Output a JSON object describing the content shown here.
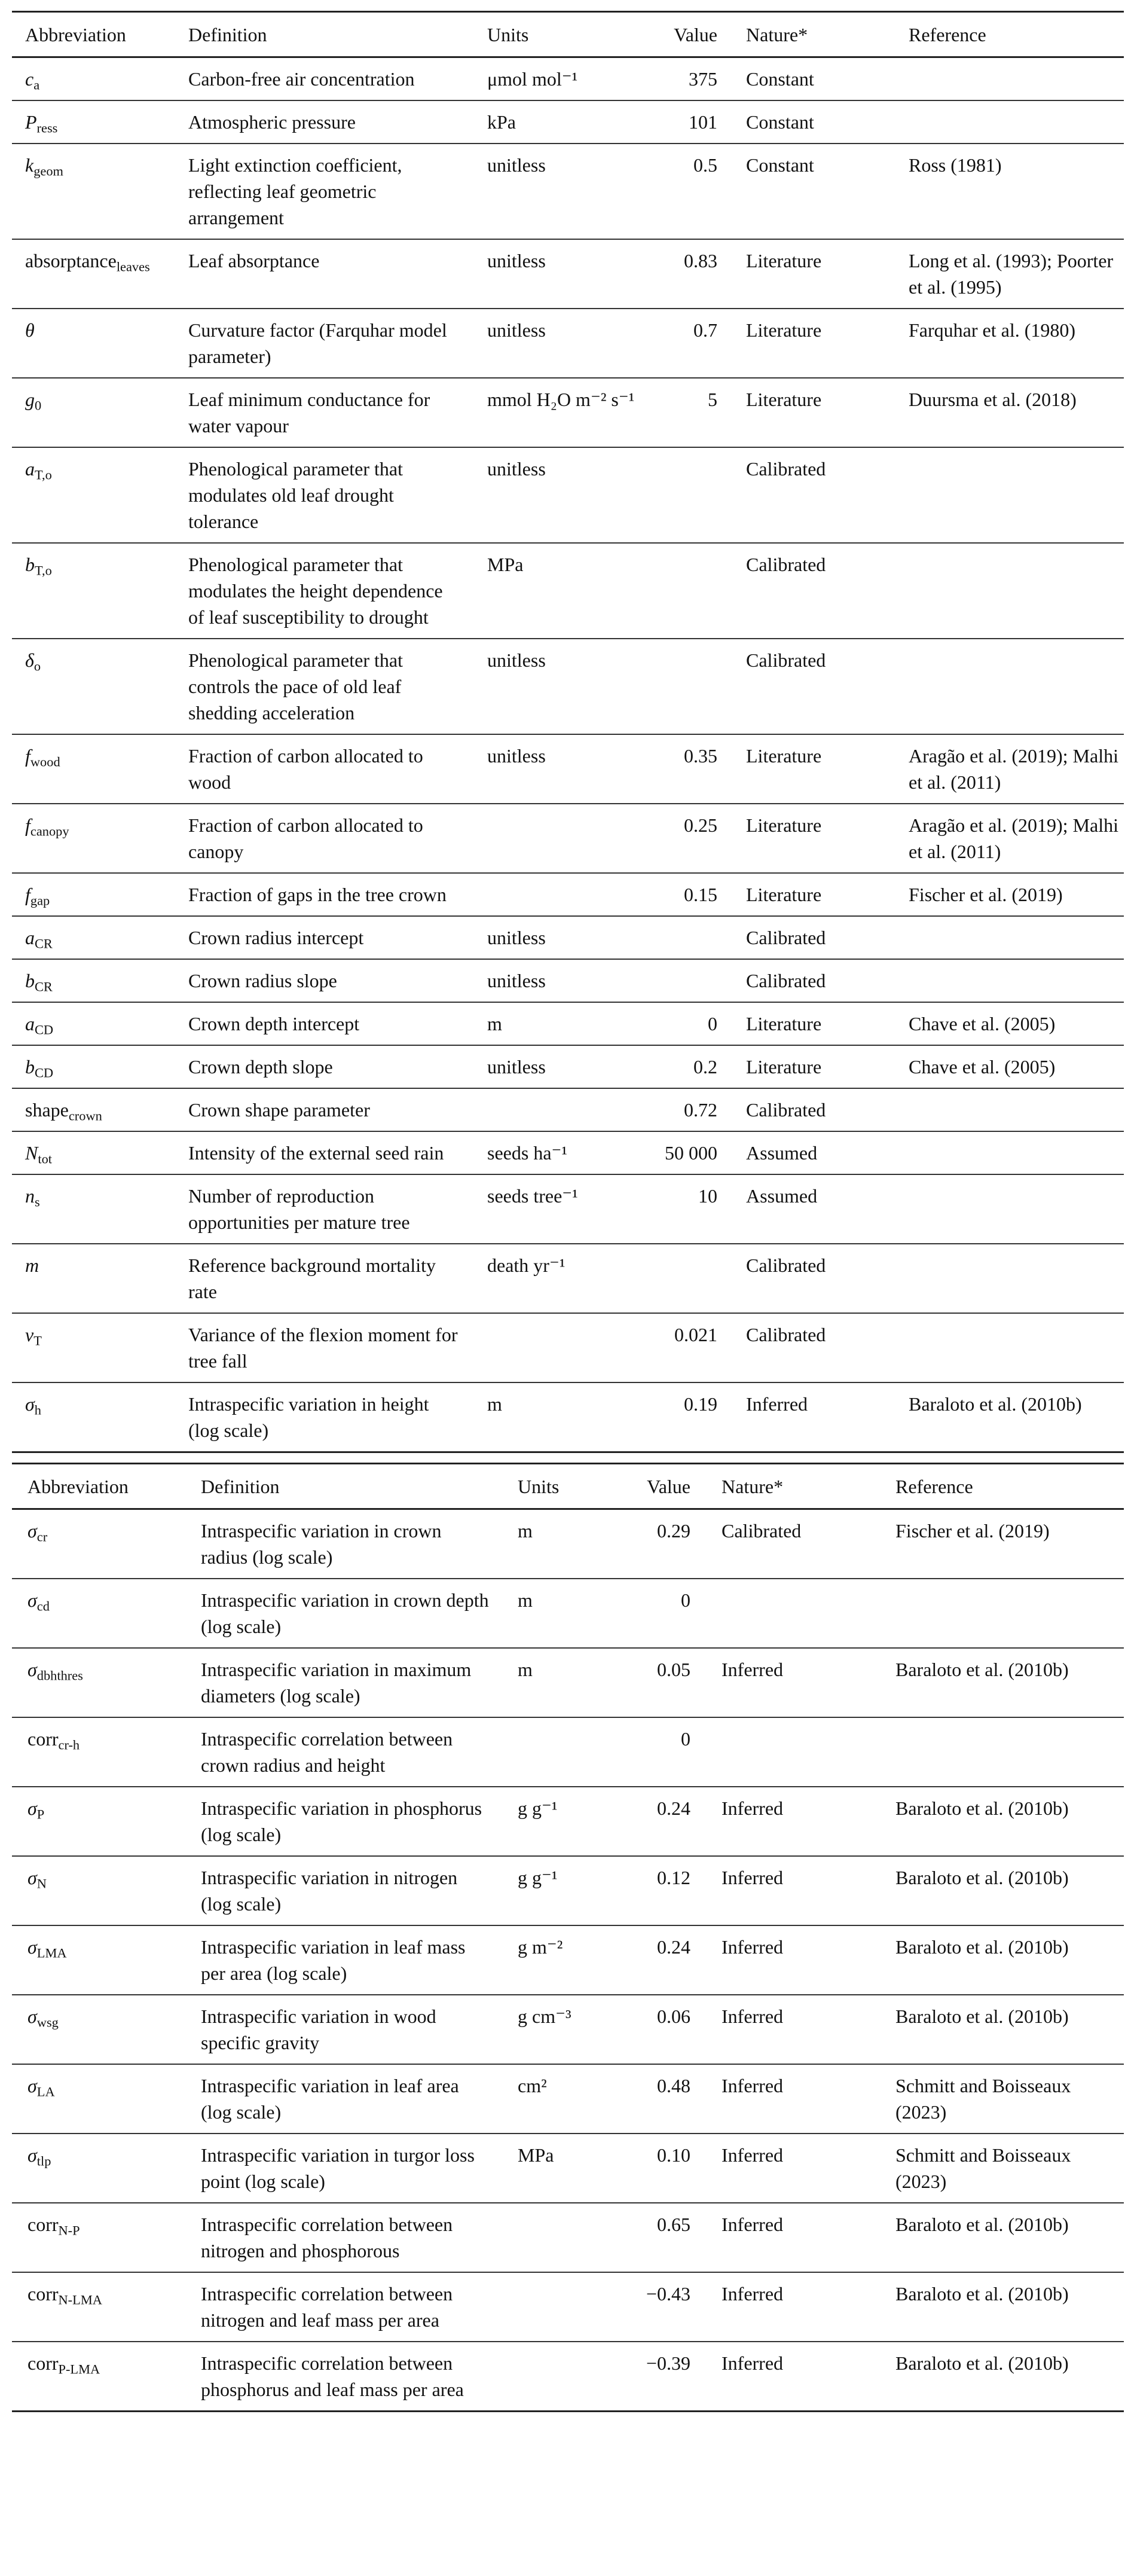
{
  "headers": [
    "Abbreviation",
    "Definition",
    "Units",
    "Value",
    "Nature*",
    "Reference"
  ],
  "tables": [
    {
      "rows": [
        {
          "sym": "c",
          "sub": "a",
          "italic": true,
          "definition": "Carbon-free air concentration",
          "units": "μmol mol⁻¹",
          "value": "375",
          "nature": "Constant",
          "reference": ""
        },
        {
          "sym": "P",
          "sub": "ress",
          "italic": true,
          "definition": "Atmospheric pressure",
          "units": "kPa",
          "value": "101",
          "nature": "Constant",
          "reference": ""
        },
        {
          "sym": "k",
          "sub": "geom",
          "italic": true,
          "definition": "Light extinction coefficient, reflecting leaf geometric arrangement",
          "units": "unitless",
          "value": "0.5",
          "nature": "Constant",
          "reference": "Ross (1981)"
        },
        {
          "sym": "absorptance",
          "sub": "leaves",
          "italic": false,
          "definition": "Leaf absorptance",
          "units": "unitless",
          "value": "0.83",
          "nature": "Literature",
          "reference": "Long et al. (1993); Poorter et al. (1995)"
        },
        {
          "sym": "θ",
          "sub": "",
          "italic": true,
          "definition": "Curvature factor (Farquhar model parameter)",
          "units": "unitless",
          "value": "0.7",
          "nature": "Literature",
          "reference": "Farquhar et al. (1980)"
        },
        {
          "sym": "g",
          "sub": "0",
          "italic": true,
          "definition": "Leaf minimum conductance for water vapour",
          "units": "mmol H₂O m⁻² s⁻¹",
          "value": "5",
          "nature": "Literature",
          "reference": "Duursma et al. (2018)"
        },
        {
          "sym": "a",
          "sub": "T,o",
          "italic": true,
          "definition": "Phenological parameter that modulates old leaf drought tolerance",
          "units": "unitless",
          "value": "",
          "nature": "Calibrated",
          "reference": ""
        },
        {
          "sym": "b",
          "sub": "T,o",
          "italic": true,
          "definition": "Phenological parameter that modulates the height dependence of leaf susceptibility to drought",
          "units": "MPa",
          "value": "",
          "nature": "Calibrated",
          "reference": ""
        },
        {
          "sym": "δ",
          "sub": "o",
          "italic": true,
          "definition": "Phenological parameter that controls the pace of old leaf shedding acceleration",
          "units": "unitless",
          "value": "",
          "nature": "Calibrated",
          "reference": ""
        },
        {
          "sym": "f",
          "sub": "wood",
          "italic": true,
          "definition": "Fraction of carbon allocated to wood",
          "units": "unitless",
          "value": "0.35",
          "nature": "Literature",
          "reference": "Aragão et al. (2019); Malhi et al. (2011)"
        },
        {
          "sym": "f",
          "sub": "canopy",
          "italic": true,
          "definition": "Fraction of carbon allocated to canopy",
          "units": "",
          "value": "0.25",
          "nature": "Literature",
          "reference": "Aragão et al. (2019); Malhi et al. (2011)"
        },
        {
          "sym": "f",
          "sub": "gap",
          "italic": true,
          "definition": "Fraction of gaps in the tree crown",
          "units": "",
          "value": "0.15",
          "nature": "Literature",
          "reference": "Fischer et al. (2019)"
        },
        {
          "sym": "a",
          "sub": "CR",
          "italic": true,
          "definition": "Crown radius intercept",
          "units": "unitless",
          "value": "",
          "nature": "Calibrated",
          "reference": ""
        },
        {
          "sym": "b",
          "sub": "CR",
          "italic": true,
          "definition": "Crown radius slope",
          "units": "unitless",
          "value": "",
          "nature": "Calibrated",
          "reference": ""
        },
        {
          "sym": "a",
          "sub": "CD",
          "italic": true,
          "definition": "Crown depth intercept",
          "units": "m",
          "value": "0",
          "nature": "Literature",
          "reference": "Chave et al. (2005)"
        },
        {
          "sym": "b",
          "sub": "CD",
          "italic": true,
          "definition": "Crown depth slope",
          "units": "unitless",
          "value": "0.2",
          "nature": "Literature",
          "reference": "Chave et al. (2005)"
        },
        {
          "sym": "shape",
          "sub": "crown",
          "italic": false,
          "definition": "Crown shape parameter",
          "units": "",
          "value": "0.72",
          "nature": "Calibrated",
          "reference": ""
        },
        {
          "sym": "N",
          "sub": "tot",
          "italic": true,
          "definition": "Intensity of the external seed rain",
          "units": "seeds ha⁻¹",
          "value": "50 000",
          "nature": "Assumed",
          "reference": ""
        },
        {
          "sym": "n",
          "sub": "s",
          "italic": true,
          "definition": "Number of reproduction opportunities per mature tree",
          "units": "seeds tree⁻¹",
          "value": "10",
          "nature": "Assumed",
          "reference": ""
        },
        {
          "sym": "m",
          "sub": "",
          "italic": true,
          "definition": "Reference background mortality rate",
          "units": "death yr⁻¹",
          "value": "",
          "nature": "Calibrated",
          "reference": ""
        },
        {
          "sym": "v",
          "sub": "T",
          "italic": true,
          "definition": "Variance of the flexion moment for tree fall",
          "units": "",
          "value": "0.021",
          "nature": "Calibrated",
          "reference": ""
        },
        {
          "sym": "σ",
          "sub": "h",
          "italic": true,
          "definition": "Intraspecific variation in height (log scale)",
          "units": "m",
          "value": "0.19",
          "nature": "Inferred",
          "reference": "Baraloto et al. (2010b)"
        }
      ]
    },
    {
      "rows": [
        {
          "sym": "σ",
          "sub": "cr",
          "italic": true,
          "definition": "Intraspecific variation in crown radius (log scale)",
          "units": "m",
          "value": "0.29",
          "nature": "Calibrated",
          "reference": "Fischer et al. (2019)"
        },
        {
          "sym": "σ",
          "sub": "cd",
          "italic": true,
          "definition": "Intraspecific variation in crown depth (log scale)",
          "units": "m",
          "value": "0",
          "nature": "",
          "reference": ""
        },
        {
          "sym": "σ",
          "sub": "dbhthres",
          "italic": true,
          "definition": "Intraspecific variation in maximum diameters (log scale)",
          "units": "m",
          "value": "0.05",
          "nature": "Inferred",
          "reference": "Baraloto et al. (2010b)"
        },
        {
          "sym": "corr",
          "sub": "cr-h",
          "italic": false,
          "definition": "Intraspecific correlation between crown radius and height",
          "units": "",
          "value": "0",
          "nature": "",
          "reference": ""
        },
        {
          "sym": "σ",
          "sub": "P",
          "italic": true,
          "definition": "Intraspecific variation in phosphorus (log scale)",
          "units": "g g⁻¹",
          "value": "0.24",
          "nature": "Inferred",
          "reference": "Baraloto et al. (2010b)"
        },
        {
          "sym": "σ",
          "sub": "N",
          "italic": true,
          "definition": "Intraspecific variation in nitrogen (log scale)",
          "units": "g g⁻¹",
          "value": "0.12",
          "nature": "Inferred",
          "reference": "Baraloto et al. (2010b)"
        },
        {
          "sym": "σ",
          "sub": "LMA",
          "italic": true,
          "definition": "Intraspecific variation in leaf mass per area (log scale)",
          "units": "g m⁻²",
          "value": "0.24",
          "nature": "Inferred",
          "reference": "Baraloto et al. (2010b)"
        },
        {
          "sym": "σ",
          "sub": "wsg",
          "italic": true,
          "definition": "Intraspecific variation in wood specific gravity",
          "units": "g cm⁻³",
          "value": "0.06",
          "nature": "Inferred",
          "reference": "Baraloto et al. (2010b)"
        },
        {
          "sym": "σ",
          "sub": "LA",
          "italic": true,
          "definition": "Intraspecific variation in leaf area (log scale)",
          "units": "cm²",
          "value": "0.48",
          "nature": "Inferred",
          "reference": "Schmitt and Boisseaux (2023)"
        },
        {
          "sym": "σ",
          "sub": "tlp",
          "italic": true,
          "definition": "Intraspecific variation in turgor loss point (log scale)",
          "units": "MPa",
          "value": "0.10",
          "nature": "Inferred",
          "reference": "Schmitt and Boisseaux (2023)"
        },
        {
          "sym": "corr",
          "sub": "N-P",
          "italic": false,
          "definition": "Intraspecific correlation between nitrogen and phosphorous",
          "units": "",
          "value": "0.65",
          "nature": "Inferred",
          "reference": "Baraloto et al. (2010b)"
        },
        {
          "sym": "corr",
          "sub": "N-LMA",
          "italic": false,
          "definition": "Intraspecific correlation between nitrogen and leaf mass per area",
          "units": "",
          "value": "−0.43",
          "nature": "Inferred",
          "reference": "Baraloto et al. (2010b)"
        },
        {
          "sym": "corr",
          "sub": "P-LMA",
          "italic": false,
          "definition": "Intraspecific correlation between phosphorus and leaf mass per area",
          "units": "",
          "value": "−0.39",
          "nature": "Inferred",
          "reference": "Baraloto et al. (2010b)"
        }
      ]
    }
  ]
}
